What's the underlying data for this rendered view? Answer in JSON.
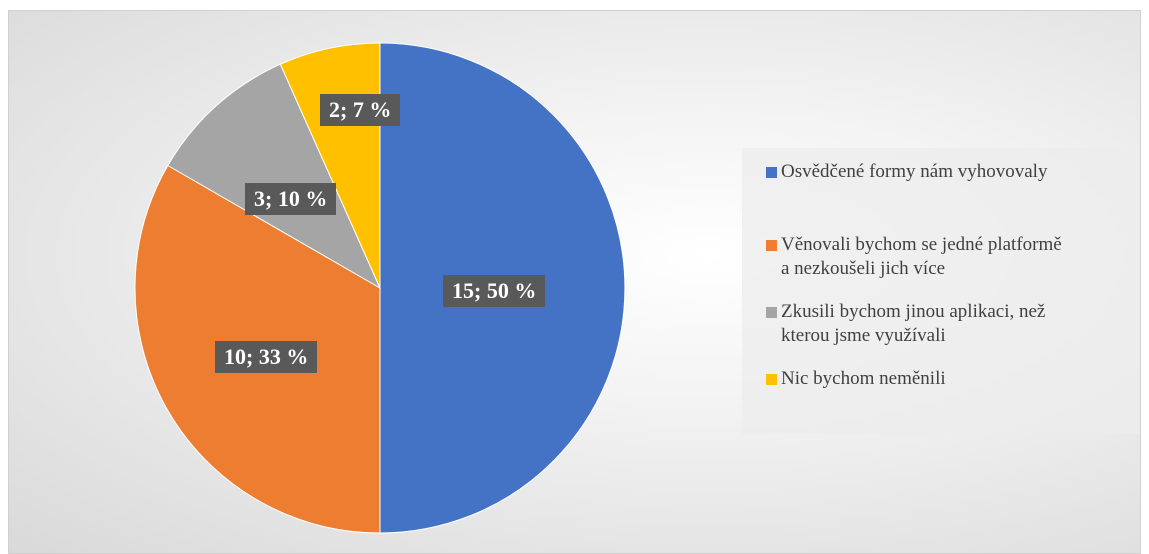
{
  "chart_data": {
    "type": "pie",
    "title": "",
    "legend_position": "right",
    "slices": [
      {
        "name": "Osvědčené formy nám vyhovovaly",
        "value": 15,
        "percent": "50 %",
        "label": "15; 50 %",
        "color": "#4472c4"
      },
      {
        "name": "Věnovali bychom se jedné platformě\na nezkoušeli jich více",
        "value": 10,
        "percent": "33 %",
        "label": "10; 33 %",
        "color": "#ed7d31"
      },
      {
        "name": "Zkusili bychom jinou aplikaci, než\nkterou jsme využívali",
        "value": 3,
        "percent": "10 %",
        "label": "3; 10 %",
        "color": "#a5a5a5"
      },
      {
        "name": "Nic bychom neměnili",
        "value": 2,
        "percent": "7 %",
        "label": "2; 7 %",
        "color": "#ffc000"
      }
    ]
  }
}
